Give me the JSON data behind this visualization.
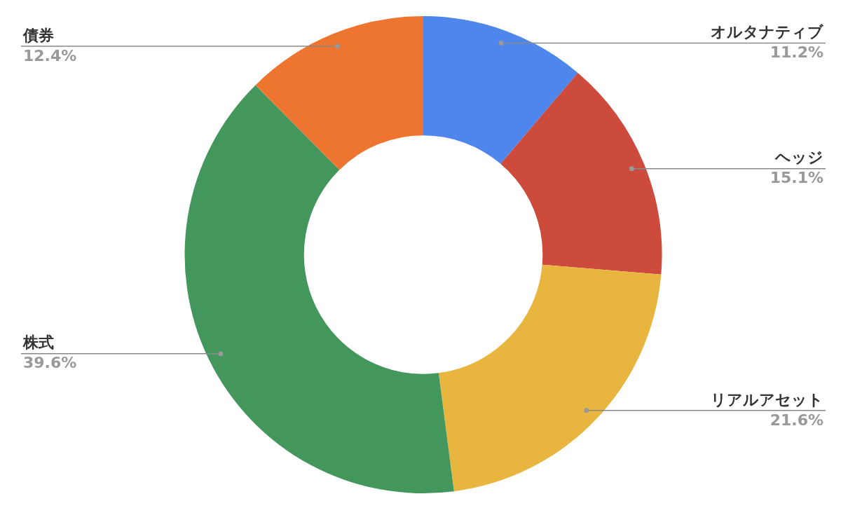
{
  "chart_data": {
    "type": "donut",
    "categories": [
      "オルタナティブ",
      "ヘッジ",
      "リアルアセット",
      "株式",
      "債券"
    ],
    "values": [
      11.2,
      15.1,
      21.6,
      39.6,
      12.4
    ],
    "colors": [
      "#4f86ec",
      "#cc4b3c",
      "#e8b53e",
      "#43975c",
      "#ee7530"
    ],
    "value_labels": [
      "11.2%",
      "15.1%",
      "21.6%",
      "39.6%",
      "12.4%"
    ],
    "legend": false
  }
}
